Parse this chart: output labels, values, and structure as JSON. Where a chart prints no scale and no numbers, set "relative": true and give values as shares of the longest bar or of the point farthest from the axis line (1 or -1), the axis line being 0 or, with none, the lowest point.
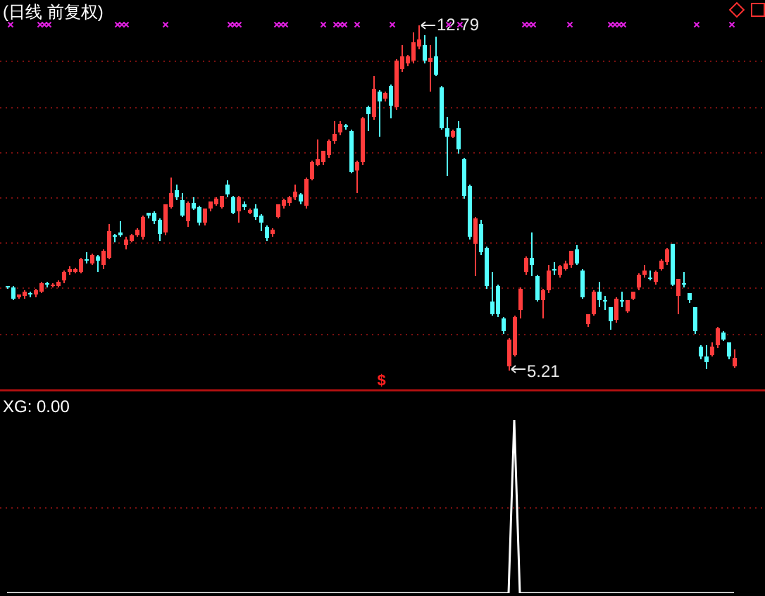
{
  "chart_data": [
    {
      "type": "candlestick",
      "title": "(日线 前复权)",
      "ref_lines": [
        {
          "axis": "y",
          "value": 12,
          "color": "#7a1010",
          "line_style": "dotted"
        },
        {
          "axis": "y",
          "value": 11,
          "color": "#7a1010",
          "line_style": "dotted"
        },
        {
          "axis": "y",
          "value": 10,
          "color": "#7a1010",
          "line_style": "dotted"
        },
        {
          "axis": "y",
          "value": 9,
          "color": "#7a1010",
          "line_style": "dotted"
        },
        {
          "axis": "y",
          "value": 8,
          "color": "#7a1010",
          "line_style": "dotted"
        },
        {
          "axis": "y",
          "value": 7,
          "color": "#7a1010",
          "line_style": "dotted"
        },
        {
          "axis": "y",
          "value": 6,
          "color": "#7a1010",
          "line_style": "dotted"
        }
      ],
      "categories": [
        null,
        null,
        null,
        null,
        null,
        null,
        null,
        null,
        null,
        null,
        null,
        null,
        null,
        null,
        null,
        null,
        null,
        null,
        null,
        null,
        null,
        null,
        null,
        null,
        null,
        null,
        null,
        null,
        null,
        null,
        null,
        null,
        null,
        null,
        null,
        null,
        null,
        null,
        null,
        null,
        null,
        null,
        null,
        null,
        null,
        null,
        null,
        null,
        null,
        null,
        null,
        null,
        null,
        null,
        null,
        null,
        null,
        null,
        null,
        null,
        null,
        null,
        null,
        null,
        null,
        null,
        null,
        null,
        null,
        null,
        null,
        null,
        null,
        null,
        null,
        null,
        null,
        null,
        null,
        null,
        null,
        null,
        null,
        null,
        null,
        null,
        null,
        null,
        null,
        null,
        null,
        null,
        null,
        null,
        null,
        null,
        null,
        null,
        null,
        null,
        null,
        null,
        null,
        null,
        null,
        null,
        null,
        null,
        null,
        null,
        null,
        null,
        null,
        null,
        null,
        null,
        null,
        null,
        null,
        null,
        null,
        null,
        null,
        null,
        null,
        null,
        null,
        null,
        null,
        null
      ],
      "ohlc": [
        [
          7.03,
          7.05,
          7.0,
          7.01
        ],
        [
          7.01,
          7.03,
          6.75,
          6.77
        ],
        [
          6.8,
          6.87,
          6.78,
          6.85
        ],
        [
          6.83,
          6.95,
          6.8,
          6.93
        ],
        [
          6.88,
          6.92,
          6.82,
          6.86
        ],
        [
          6.85,
          6.97,
          6.83,
          6.95
        ],
        [
          6.93,
          7.15,
          6.91,
          7.11
        ],
        [
          7.09,
          7.13,
          7.03,
          7.07
        ],
        [
          7.05,
          7.1,
          7.03,
          7.08
        ],
        [
          7.05,
          7.16,
          7.03,
          7.14
        ],
        [
          7.16,
          7.38,
          7.14,
          7.34
        ],
        [
          7.34,
          7.49,
          7.32,
          7.42
        ],
        [
          7.36,
          7.45,
          7.34,
          7.43
        ],
        [
          7.36,
          7.65,
          7.34,
          7.63
        ],
        [
          7.64,
          7.78,
          7.58,
          7.62
        ],
        [
          7.55,
          7.75,
          7.53,
          7.73
        ],
        [
          7.71,
          7.73,
          7.39,
          7.6
        ],
        [
          7.5,
          7.86,
          7.45,
          7.81
        ],
        [
          7.67,
          8.4,
          7.65,
          8.25
        ],
        [
          8.17,
          8.2,
          8.05,
          8.15
        ],
        [
          8.22,
          8.46,
          8.15,
          8.17
        ],
        [
          7.94,
          8.12,
          7.89,
          8.07
        ],
        [
          8.05,
          8.2,
          8.03,
          8.17
        ],
        [
          8.17,
          8.33,
          8.15,
          8.28
        ],
        [
          8.12,
          8.59,
          8.1,
          8.55
        ],
        [
          8.67,
          8.67,
          8.57,
          8.59
        ],
        [
          8.67,
          8.69,
          8.44,
          8.46
        ],
        [
          8.5,
          8.52,
          8.07,
          8.19
        ],
        [
          8.22,
          8.86,
          8.19,
          8.84
        ],
        [
          8.79,
          9.43,
          8.77,
          9.1
        ],
        [
          9.16,
          9.28,
          8.98,
          9.0
        ],
        [
          8.95,
          9.1,
          8.59,
          8.61
        ],
        [
          8.48,
          8.9,
          8.38,
          8.88
        ],
        [
          8.87,
          9.0,
          8.74,
          8.76
        ],
        [
          8.79,
          8.81,
          8.4,
          8.43
        ],
        [
          8.43,
          8.76,
          8.4,
          8.74
        ],
        [
          8.74,
          8.92,
          8.72,
          8.9
        ],
        [
          8.85,
          9.0,
          8.83,
          8.98
        ],
        [
          8.79,
          9.04,
          8.77,
          9.02
        ],
        [
          9.28,
          9.36,
          9.03,
          9.05
        ],
        [
          9.0,
          9.02,
          8.65,
          8.67
        ],
        [
          8.69,
          9.02,
          8.46,
          9.0
        ],
        [
          8.85,
          8.92,
          8.75,
          8.77
        ],
        [
          8.67,
          8.75,
          8.65,
          8.73
        ],
        [
          8.76,
          8.85,
          8.53,
          8.55
        ],
        [
          8.61,
          8.63,
          8.3,
          8.43
        ],
        [
          8.36,
          8.38,
          8.07,
          8.09
        ],
        [
          8.19,
          8.32,
          8.17,
          8.3
        ],
        [
          8.57,
          8.86,
          8.55,
          8.84
        ],
        [
          8.81,
          8.97,
          8.79,
          8.95
        ],
        [
          8.88,
          9.02,
          8.86,
          9.0
        ],
        [
          9.0,
          9.29,
          8.98,
          9.12
        ],
        [
          9.07,
          9.1,
          8.88,
          8.9
        ],
        [
          8.81,
          9.43,
          8.79,
          9.41
        ],
        [
          9.41,
          9.8,
          9.39,
          9.78
        ],
        [
          9.73,
          10.26,
          9.71,
          9.83
        ],
        [
          9.78,
          10.04,
          9.76,
          10.02
        ],
        [
          9.93,
          10.26,
          9.91,
          10.24
        ],
        [
          10.24,
          10.68,
          10.22,
          10.4
        ],
        [
          10.43,
          10.68,
          10.4,
          10.61
        ],
        [
          10.59,
          10.61,
          10.52,
          10.55
        ],
        [
          10.47,
          10.5,
          9.55,
          9.57
        ],
        [
          9.6,
          9.8,
          9.12,
          9.78
        ],
        [
          9.78,
          10.76,
          9.76,
          10.74
        ],
        [
          10.99,
          11.01,
          10.5,
          10.84
        ],
        [
          10.76,
          11.67,
          10.74,
          11.38
        ],
        [
          11.33,
          11.35,
          10.37,
          11.12
        ],
        [
          11.17,
          11.32,
          11.15,
          11.3
        ],
        [
          11.45,
          11.48,
          10.78,
          11.02
        ],
        [
          10.99,
          12.04,
          10.97,
          12.02
        ],
        [
          11.82,
          12.34,
          11.8,
          12.11
        ],
        [
          11.95,
          12.14,
          11.93,
          12.11
        ],
        [
          12.0,
          12.62,
          11.98,
          12.42
        ],
        [
          12.31,
          12.79,
          12.29,
          12.47
        ],
        [
          12.35,
          12.57,
          11.98,
          12.0
        ],
        [
          11.98,
          12.37,
          11.36,
          12.09
        ],
        [
          12.11,
          12.54,
          11.69,
          11.71
        ],
        [
          11.43,
          11.45,
          10.51,
          10.53
        ],
        [
          10.53,
          10.76,
          9.5,
          10.33
        ],
        [
          10.35,
          10.5,
          10.33,
          10.47
        ],
        [
          10.53,
          10.68,
          9.98,
          10.06
        ],
        [
          9.85,
          9.87,
          9.0,
          9.02
        ],
        [
          9.26,
          9.28,
          8.1,
          8.12
        ],
        [
          7.99,
          8.55,
          7.29,
          8.53
        ],
        [
          8.4,
          8.5,
          7.76,
          7.78
        ],
        [
          7.88,
          7.9,
          7.01,
          7.03
        ],
        [
          6.7,
          7.34,
          6.41,
          6.43
        ],
        [
          7.05,
          7.08,
          6.39,
          6.41
        ],
        [
          6.33,
          6.35,
          6.03,
          6.05
        ],
        [
          5.27,
          5.89,
          5.21,
          5.87
        ],
        [
          5.53,
          6.38,
          5.51,
          6.36
        ],
        [
          6.51,
          7.0,
          6.36,
          6.98
        ],
        [
          7.34,
          7.69,
          7.31,
          7.67
        ],
        [
          7.67,
          8.22,
          7.29,
          7.5
        ],
        [
          7.26,
          7.28,
          6.72,
          6.74
        ],
        [
          6.72,
          6.97,
          6.36,
          6.95
        ],
        [
          6.95,
          7.5,
          6.93,
          7.39
        ],
        [
          7.43,
          7.57,
          7.31,
          7.41
        ],
        [
          7.29,
          7.52,
          7.26,
          7.47
        ],
        [
          7.43,
          7.6,
          7.41,
          7.55
        ],
        [
          7.5,
          7.83,
          7.48,
          7.81
        ],
        [
          7.86,
          7.94,
          7.53,
          7.55
        ],
        [
          7.39,
          7.41,
          6.78,
          6.8
        ],
        [
          6.2,
          6.43,
          6.18,
          6.41
        ],
        [
          6.43,
          6.95,
          6.41,
          6.93
        ],
        [
          6.91,
          7.14,
          6.62,
          6.72
        ],
        [
          6.74,
          6.82,
          6.54,
          6.72
        ],
        [
          6.57,
          6.59,
          6.12,
          6.26
        ],
        [
          6.29,
          6.8,
          6.26,
          6.77
        ],
        [
          6.72,
          6.91,
          6.6,
          6.7
        ],
        [
          6.49,
          6.74,
          6.47,
          6.72
        ],
        [
          6.77,
          6.93,
          6.75,
          6.91
        ],
        [
          7.01,
          7.31,
          6.99,
          7.29
        ],
        [
          7.29,
          7.5,
          7.26,
          7.39
        ],
        [
          7.24,
          7.39,
          7.19,
          7.22
        ],
        [
          7.13,
          7.39,
          7.11,
          7.36
        ],
        [
          7.43,
          7.63,
          7.41,
          7.6
        ],
        [
          7.57,
          7.88,
          7.55,
          7.86
        ],
        [
          7.96,
          7.99,
          7.06,
          7.08
        ],
        [
          6.83,
          7.21,
          6.46,
          7.19
        ],
        [
          7.09,
          7.36,
          7.03,
          7.08
        ],
        [
          6.88,
          6.9,
          6.7,
          6.72
        ],
        [
          6.57,
          6.59,
          6.03,
          6.05
        ],
        [
          5.71,
          5.73,
          5.46,
          5.48
        ],
        [
          5.48,
          5.74,
          5.25,
          5.38
        ],
        [
          5.53,
          5.79,
          5.51,
          5.71
        ],
        [
          5.74,
          6.14,
          5.72,
          6.12
        ],
        [
          6.02,
          6.04,
          5.85,
          5.87
        ],
        [
          5.79,
          5.81,
          5.45,
          5.48
        ],
        [
          5.28,
          5.63,
          5.26,
          5.46
        ]
      ],
      "colors": [
        "#54ffff",
        "#54ffff",
        "#ff3c3c",
        "#ff3c3c",
        "#54ffff",
        "#ff3c3c",
        "#ff3c3c",
        "#54ffff",
        "#ff3c3c",
        "#ff3c3c",
        "#ff3c3c",
        "#ff3c3c",
        "#ff3c3c",
        "#ff3c3c",
        "#54ffff",
        "#ff3c3c",
        "#54ffff",
        "#ff3c3c",
        "#ff3c3c",
        "#54ffff",
        "#54ffff",
        "#ff3c3c",
        "#ff3c3c",
        "#ff3c3c",
        "#ff3c3c",
        "#54ffff",
        "#54ffff",
        "#54ffff",
        "#ff3c3c",
        "#ff3c3c",
        "#54ffff",
        "#54ffff",
        "#ff3c3c",
        "#54ffff",
        "#54ffff",
        "#ff3c3c",
        "#ff3c3c",
        "#ff3c3c",
        "#ff3c3c",
        "#54ffff",
        "#54ffff",
        "#ff3c3c",
        "#54ffff",
        "#ff3c3c",
        "#54ffff",
        "#54ffff",
        "#54ffff",
        "#ff3c3c",
        "#ff3c3c",
        "#ff3c3c",
        "#ff3c3c",
        "#ff3c3c",
        "#54ffff",
        "#ff3c3c",
        "#ff3c3c",
        "#ff3c3c",
        "#ff3c3c",
        "#ff3c3c",
        "#ff3c3c",
        "#ff3c3c",
        "#54ffff",
        "#54ffff",
        "#ff3c3c",
        "#ff3c3c",
        "#54ffff",
        "#ff3c3c",
        "#54ffff",
        "#ff3c3c",
        "#54ffff",
        "#ff3c3c",
        "#ff3c3c",
        "#ff3c3c",
        "#ff3c3c",
        "#ff3c3c",
        "#54ffff",
        "#ff3c3c",
        "#54ffff",
        "#54ffff",
        "#54ffff",
        "#ff3c3c",
        "#54ffff",
        "#54ffff",
        "#54ffff",
        "#ff3c3c",
        "#54ffff",
        "#54ffff",
        "#54ffff",
        "#54ffff",
        "#54ffff",
        "#ff3c3c",
        "#ff3c3c",
        "#ff3c3c",
        "#ff3c3c",
        "#54ffff",
        "#54ffff",
        "#ff3c3c",
        "#ff3c3c",
        "#54ffff",
        "#ff3c3c",
        "#ff3c3c",
        "#ff3c3c",
        "#54ffff",
        "#54ffff",
        "#ff3c3c",
        "#ff3c3c",
        "#54ffff",
        "#54ffff",
        "#54ffff",
        "#ff3c3c",
        "#54ffff",
        "#ff3c3c",
        "#ff3c3c",
        "#ff3c3c",
        "#ff3c3c",
        "#54ffff",
        "#ff3c3c",
        "#ff3c3c",
        "#ff3c3c",
        "#54ffff",
        "#ff3c3c",
        "#54ffff",
        "#54ffff",
        "#54ffff",
        "#54ffff",
        "#54ffff",
        "#ff3c3c",
        "#ff3c3c",
        "#54ffff",
        "#54ffff",
        "#ff3c3c"
      ],
      "annotations": [
        {
          "text": "12.79",
          "y": 12.79
        },
        "5.21",
        "$"
      ]
    },
    {
      "type": "line",
      "title": "XG: 0.00",
      "relative": true,
      "ref_lines": [
        {
          "axis": "y",
          "value": 0.5,
          "color": "#7a1010",
          "line_style": "dotted"
        }
      ],
      "categories": [
        null,
        null,
        null,
        null,
        null,
        null,
        null,
        null,
        null,
        null,
        null,
        null,
        null,
        null,
        null,
        null,
        null,
        null,
        null,
        null,
        null,
        null,
        null,
        null,
        null,
        null,
        null,
        null,
        null,
        null,
        null,
        null,
        null,
        null,
        null,
        null,
        null,
        null,
        null,
        null,
        null,
        null,
        null,
        null,
        null,
        null,
        null,
        null,
        null,
        null,
        null,
        null,
        null,
        null,
        null,
        null,
        null,
        null,
        null,
        null,
        null,
        null,
        null,
        null,
        null,
        null,
        null,
        null,
        null,
        null,
        null,
        null,
        null,
        null,
        null,
        null,
        null,
        null,
        null,
        null,
        null,
        null,
        null,
        null,
        null,
        null,
        null,
        null,
        null,
        null,
        null,
        null,
        null,
        null,
        null,
        null,
        null,
        null,
        null,
        null,
        null,
        null,
        null,
        null,
        null,
        null,
        null,
        null,
        null,
        null,
        null,
        null,
        null,
        null,
        null,
        null,
        null,
        null,
        null,
        null,
        null,
        null,
        null,
        null,
        null,
        null,
        null,
        null,
        null,
        null
      ],
      "series": [
        {
          "color": "#ffffff",
          "values": [
            0,
            0,
            0,
            0,
            0,
            0,
            0,
            0,
            0,
            0,
            0,
            0,
            0,
            0,
            0,
            0,
            0,
            0,
            0,
            0,
            0,
            0,
            0,
            0,
            0,
            0,
            0,
            0,
            0,
            0,
            0,
            0,
            0,
            0,
            0,
            0,
            0,
            0,
            0,
            0,
            0,
            0,
            0,
            0,
            0,
            0,
            0,
            0,
            0,
            0,
            0,
            0,
            0,
            0,
            0,
            0,
            0,
            0,
            0,
            0,
            0,
            0,
            0,
            0,
            0,
            0,
            0,
            0,
            0,
            0,
            0,
            0,
            0,
            0,
            0,
            0,
            0,
            0,
            0,
            0,
            0,
            0,
            0,
            0,
            0,
            0,
            0,
            0,
            0,
            0,
            1,
            0,
            0,
            0,
            0,
            0,
            0,
            0,
            0,
            0,
            0,
            0,
            0,
            0,
            0,
            0,
            0,
            0,
            0,
            0,
            0,
            0,
            0,
            0,
            0,
            0,
            0,
            0,
            0,
            0,
            0,
            0,
            0,
            0,
            0,
            0,
            0,
            0,
            0,
            0
          ]
        }
      ]
    }
  ]
}
